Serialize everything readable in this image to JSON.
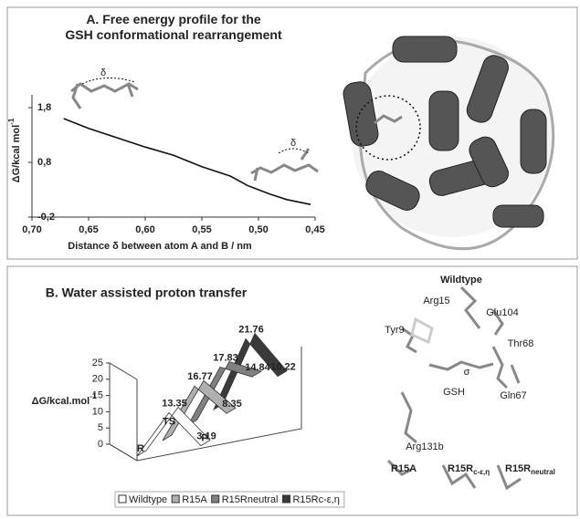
{
  "chart_data": [
    {
      "type": "line",
      "title": "A. Free energy profile for the GSH conformational rearrangement",
      "y_label": "ΔG/kcal mol",
      "y_label_sup": "-1",
      "x_label": "Distance δ between atom A and B / nm",
      "x": [
        0.672,
        0.65,
        0.625,
        0.6,
        0.575,
        0.55,
        0.525,
        0.51,
        0.5,
        0.49,
        0.475,
        0.454
      ],
      "values": [
        1.6,
        1.42,
        1.25,
        1.08,
        0.93,
        0.72,
        0.55,
        0.38,
        0.3,
        0.22,
        0.12,
        0.03
      ],
      "color": "#111",
      "xlim": [
        0.7,
        0.45
      ],
      "xticks": [
        {
          "value": 0.7,
          "label": "0,70"
        },
        {
          "value": 0.65,
          "label": "0,65"
        },
        {
          "value": 0.6,
          "label": "0,60"
        },
        {
          "value": 0.55,
          "label": "0,55"
        },
        {
          "value": 0.5,
          "label": "0,50"
        },
        {
          "value": 0.45,
          "label": "0,45"
        }
      ],
      "ylim": [
        -0.2,
        2.2
      ],
      "yticks": [
        {
          "value": -0.2,
          "label": "-0,2"
        },
        {
          "value": 0.8,
          "label": "0,8"
        },
        {
          "value": 1.8,
          "label": "1,8"
        }
      ],
      "annotations": [
        "δ",
        "δ"
      ]
    },
    {
      "type": "ribbon3d",
      "title": "B. Water assisted proton transfer",
      "y_label": "ΔG/kcal.mol",
      "y_label_sup": "-1",
      "categories": [
        "R",
        "TS",
        "P"
      ],
      "series": [
        {
          "name": "Wildtype",
          "color": "#ffffff",
          "values": [
            0,
            13.35,
            3.19
          ]
        },
        {
          "name": "R15A",
          "color": "#b0b0b0",
          "values": [
            0,
            16.77,
            8.35
          ]
        },
        {
          "name": "R15Rneutral",
          "color": "#808080",
          "values": [
            0,
            17.83,
            14.84
          ]
        },
        {
          "name": "R15Rc-ε,η",
          "color": "#3a3a3a",
          "values": [
            0,
            21.76,
            10.22
          ]
        }
      ],
      "ylim": [
        0,
        25
      ],
      "yticks": [
        0,
        5,
        10,
        15,
        20,
        25
      ]
    }
  ],
  "structure": {
    "title": "Wildtype",
    "labels": [
      "Arg15",
      "Glu104",
      "Tyr9",
      "Thr68",
      "σ",
      "GSH",
      "Gln67",
      "Arg131b"
    ],
    "variants": [
      {
        "text": "R15A"
      },
      {
        "text": "R15R",
        "sub": "c-ε,η"
      },
      {
        "text": "R15R",
        "sub": "neutral"
      }
    ]
  }
}
